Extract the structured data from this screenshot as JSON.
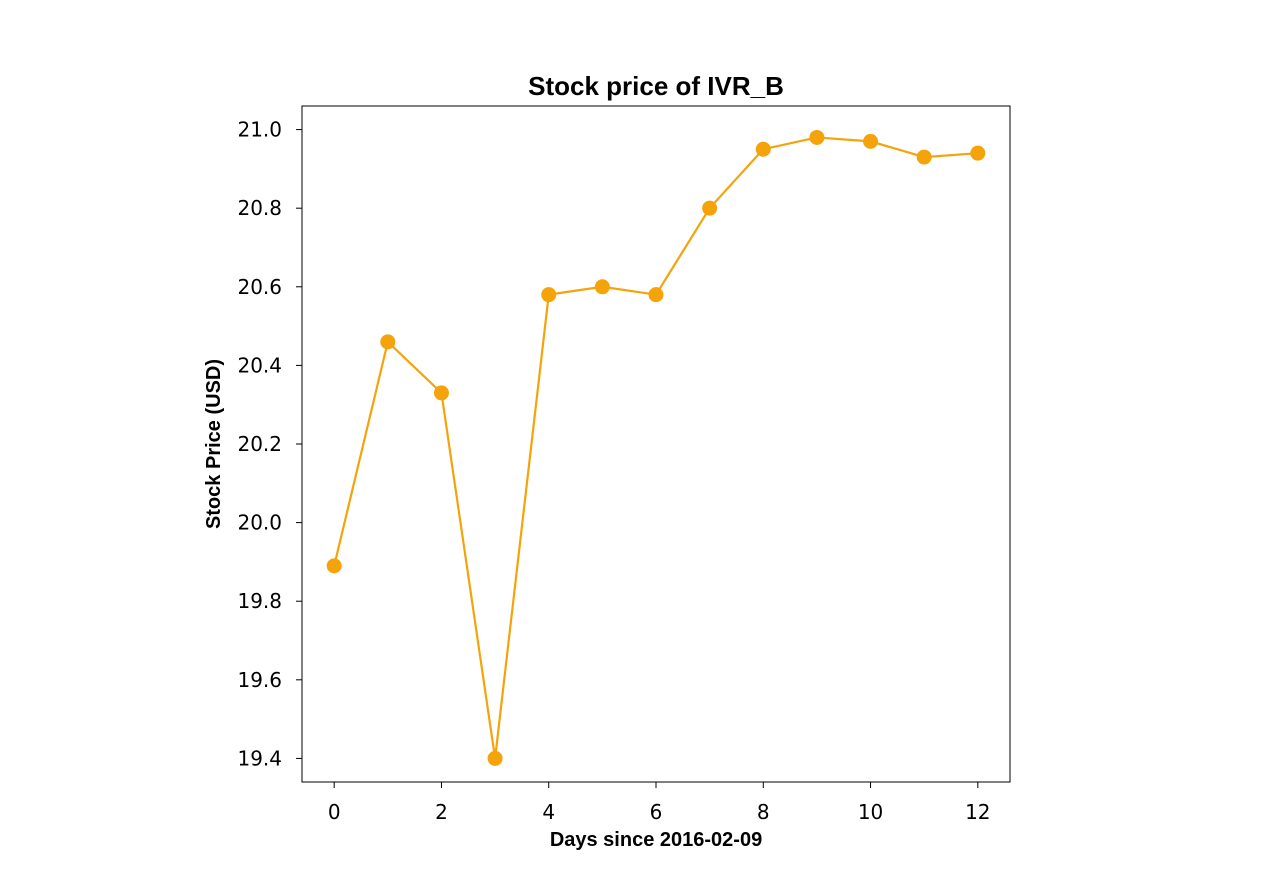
{
  "chart_data": {
    "type": "line",
    "title": "Stock price of IVR_B",
    "xlabel": "Days since 2016-02-09",
    "ylabel": "Stock Price (USD)",
    "x": [
      0,
      1,
      2,
      3,
      4,
      5,
      6,
      7,
      8,
      9,
      10,
      11,
      12
    ],
    "series": [
      {
        "values": [
          19.89,
          20.46,
          20.33,
          19.4,
          20.58,
          20.6,
          20.58,
          20.8,
          20.95,
          20.98,
          20.97,
          20.93,
          20.94
        ],
        "color": "#f5a30a"
      }
    ],
    "xlim": [
      -0.6,
      12.6
    ],
    "ylim": [
      19.34,
      21.06
    ],
    "xticks": [
      0,
      2,
      4,
      6,
      8,
      10,
      12
    ],
    "xtick_labels": [
      "0",
      "2",
      "4",
      "6",
      "8",
      "10",
      "12"
    ],
    "yticks": [
      19.4,
      19.6,
      19.8,
      20.0,
      20.2,
      20.4,
      20.6,
      20.8,
      21.0
    ],
    "ytick_labels": [
      "19.4",
      "19.6",
      "19.8",
      "20.0",
      "20.2",
      "20.4",
      "20.6",
      "20.8",
      "21.0"
    ],
    "grid": false,
    "legend": "none"
  }
}
